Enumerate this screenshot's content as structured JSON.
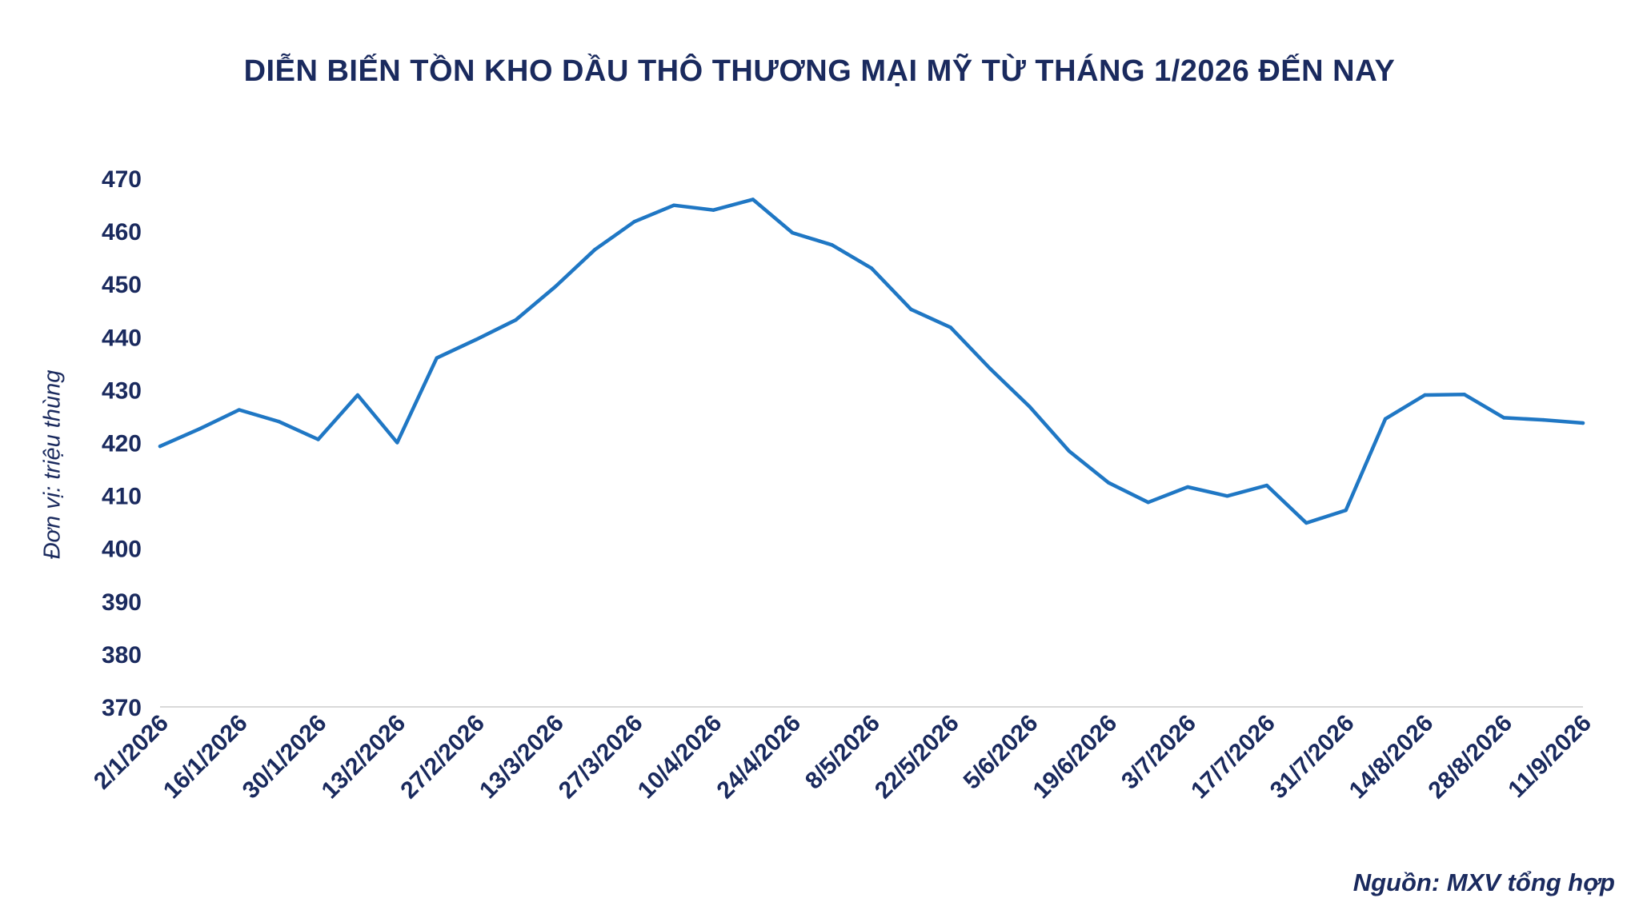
{
  "chart_data": {
    "type": "line",
    "title": "DIỄN BIẾN TỒN KHO DẦU THÔ THƯƠNG MẠI MỸ TỪ THÁNG 1/2026 ĐẾN NAY",
    "ylabel": "Đơn vị: triệu thùng",
    "xlabel": "",
    "source": "Nguồn: MXV tổng hợp",
    "ylim": [
      370,
      470
    ],
    "yticks": [
      470,
      460,
      450,
      440,
      430,
      420,
      410,
      400,
      390,
      380,
      370
    ],
    "x": [
      "2/1/2026",
      "9/1/2026",
      "16/1/2026",
      "23/1/2026",
      "30/1/2026",
      "6/2/2026",
      "13/2/2026",
      "20/2/2026",
      "27/2/2026",
      "6/3/2026",
      "13/3/2026",
      "20/3/2026",
      "27/3/2026",
      "3/4/2026",
      "10/4/2026",
      "17/4/2026",
      "24/4/2026",
      "1/5/2026",
      "8/5/2026",
      "15/5/2026",
      "22/5/2026",
      "29/5/2026",
      "5/6/2026",
      "12/6/2026",
      "19/6/2026",
      "26/6/2026",
      "3/7/2026",
      "10/7/2026",
      "17/7/2026",
      "24/7/2026",
      "31/7/2026",
      "7/8/2026",
      "14/8/2026",
      "21/8/2026",
      "28/8/2026",
      "4/9/2026",
      "11/9/2026"
    ],
    "xtick_labels": [
      "2/1/2026",
      "16/1/2026",
      "30/1/2026",
      "13/2/2026",
      "27/2/2026",
      "13/3/2026",
      "27/3/2026",
      "10/4/2026",
      "24/4/2026",
      "8/5/2026",
      "22/5/2026",
      "5/6/2026",
      "19/6/2026",
      "3/7/2026",
      "17/7/2026",
      "31/7/2026",
      "14/8/2026",
      "28/8/2026",
      "11/9/2026"
    ],
    "series": [
      {
        "values": [
          419.3,
          422.6,
          426.2,
          424.0,
          420.6,
          429.0,
          420.0,
          436.0,
          439.5,
          443.2,
          449.5,
          456.5,
          461.8,
          464.9,
          464.0,
          466.0,
          459.7,
          457.4,
          453.0,
          445.2,
          441.8,
          434.0,
          426.8,
          418.4,
          412.4,
          408.7,
          411.6,
          409.9,
          411.9,
          404.8,
          407.2,
          424.5,
          429.0,
          429.1,
          424.7,
          424.3,
          423.7
        ],
        "color": "#1f77c4"
      }
    ],
    "grid": false,
    "legend": "none"
  }
}
